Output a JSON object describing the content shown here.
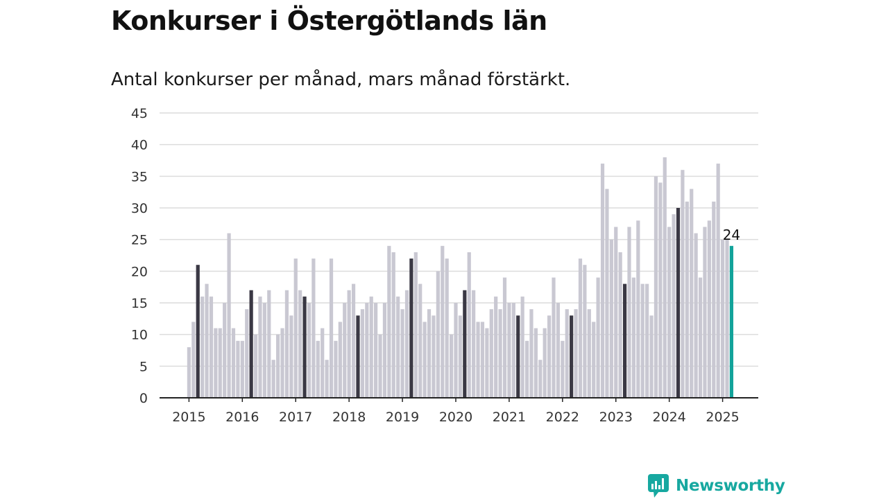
{
  "chart_data": {
    "type": "bar",
    "title": "Konkurser i Östergötlands län",
    "subtitle": "Antal konkurser per månad, mars månad förstärkt.",
    "xlabel": "",
    "ylabel": "",
    "ylim": [
      0,
      45
    ],
    "yticks": [
      0,
      5,
      10,
      15,
      20,
      25,
      30,
      35,
      40,
      45
    ],
    "x_tick_labels": [
      "2015",
      "2016",
      "2017",
      "2018",
      "2019",
      "2020",
      "2021",
      "2022",
      "2023",
      "2024",
      "2025"
    ],
    "grid": true,
    "legend": "none",
    "categories": [
      "2015-01",
      "2015-02",
      "2015-03",
      "2015-04",
      "2015-05",
      "2015-06",
      "2015-07",
      "2015-08",
      "2015-09",
      "2015-10",
      "2015-11",
      "2015-12",
      "2016-01",
      "2016-02",
      "2016-03",
      "2016-04",
      "2016-05",
      "2016-06",
      "2016-07",
      "2016-08",
      "2016-09",
      "2016-10",
      "2016-11",
      "2016-12",
      "2017-01",
      "2017-02",
      "2017-03",
      "2017-04",
      "2017-05",
      "2017-06",
      "2017-07",
      "2017-08",
      "2017-09",
      "2017-10",
      "2017-11",
      "2017-12",
      "2018-01",
      "2018-02",
      "2018-03",
      "2018-04",
      "2018-05",
      "2018-06",
      "2018-07",
      "2018-08",
      "2018-09",
      "2018-10",
      "2018-11",
      "2018-12",
      "2019-01",
      "2019-02",
      "2019-03",
      "2019-04",
      "2019-05",
      "2019-06",
      "2019-07",
      "2019-08",
      "2019-09",
      "2019-10",
      "2019-11",
      "2019-12",
      "2020-01",
      "2020-02",
      "2020-03",
      "2020-04",
      "2020-05",
      "2020-06",
      "2020-07",
      "2020-08",
      "2020-09",
      "2020-10",
      "2020-11",
      "2020-12",
      "2021-01",
      "2021-02",
      "2021-03",
      "2021-04",
      "2021-05",
      "2021-06",
      "2021-07",
      "2021-08",
      "2021-09",
      "2021-10",
      "2021-11",
      "2021-12",
      "2022-01",
      "2022-02",
      "2022-03",
      "2022-04",
      "2022-05",
      "2022-06",
      "2022-07",
      "2022-08",
      "2022-09",
      "2022-10",
      "2022-11",
      "2022-12",
      "2023-01",
      "2023-02",
      "2023-03",
      "2023-04",
      "2023-05",
      "2023-06",
      "2023-07",
      "2023-08",
      "2023-09",
      "2023-10",
      "2023-11",
      "2023-12",
      "2024-01",
      "2024-02",
      "2024-03",
      "2024-04",
      "2024-05",
      "2024-06",
      "2024-07",
      "2024-08",
      "2024-09",
      "2024-10",
      "2024-11",
      "2024-12",
      "2025-01",
      "2025-02",
      "2025-03"
    ],
    "values": [
      8,
      12,
      21,
      16,
      18,
      16,
      11,
      11,
      15,
      26,
      11,
      9,
      9,
      14,
      17,
      10,
      16,
      15,
      17,
      6,
      10,
      11,
      17,
      13,
      22,
      17,
      16,
      15,
      22,
      9,
      11,
      6,
      22,
      9,
      12,
      15,
      17,
      18,
      13,
      14,
      15,
      16,
      15,
      10,
      15,
      24,
      23,
      16,
      14,
      17,
      22,
      23,
      18,
      12,
      14,
      13,
      20,
      24,
      22,
      10,
      15,
      13,
      17,
      23,
      17,
      12,
      12,
      11,
      14,
      16,
      14,
      19,
      15,
      15,
      13,
      16,
      9,
      14,
      11,
      6,
      11,
      13,
      19,
      15,
      9,
      14,
      13,
      14,
      22,
      21,
      14,
      12,
      19,
      37,
      33,
      25,
      27,
      23,
      18,
      27,
      19,
      28,
      18,
      18,
      13,
      35,
      34,
      38,
      27,
      29,
      30,
      36,
      31,
      33,
      26,
      19,
      27,
      28,
      31,
      37,
      25,
      25,
      24
    ],
    "highlight_month": "03",
    "last_value_label": "24",
    "colors": {
      "bar": "#c9c8d2",
      "highlight": "#3a3844",
      "latest": "#12a39a",
      "grid": "#dcdcdc",
      "axis": "#222222"
    }
  },
  "brand": {
    "name": "Newsworthy",
    "icon": "newsworthy-chart-logo-icon",
    "color": "#17a8a0"
  }
}
